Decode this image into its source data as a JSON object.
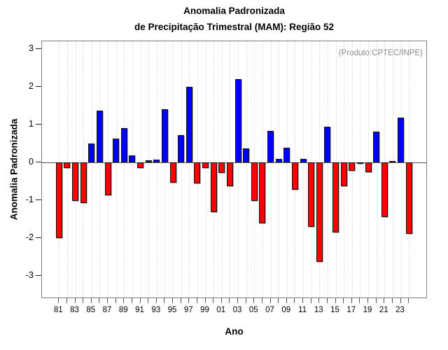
{
  "title": {
    "line1": "Anomalia Padronizada",
    "line2": "de Precipitação Trimestral (MAM): Região 52"
  },
  "annotation": "(Produto:CPTEC/INPE)",
  "chart_data": {
    "type": "bar",
    "title": "Anomalia Padronizada de Precipitação Trimestral (MAM): Região 52",
    "xlabel": "Ano",
    "ylabel": "Anomalia Padronizada",
    "ylim": [
      -3.2,
      3.2
    ],
    "yticks": [
      3,
      2,
      1,
      0,
      -1,
      -2,
      -3
    ],
    "ytick_labels": [
      "3",
      "2",
      "1",
      "0",
      "-1",
      "-2",
      "-3"
    ],
    "grid": "vertical-dotted",
    "legend": "none",
    "colors": {
      "positive": "#0000ff",
      "negative": "#ff0000"
    },
    "categories": [
      "81",
      "82",
      "83",
      "84",
      "85",
      "86",
      "87",
      "88",
      "89",
      "90",
      "91",
      "92",
      "93",
      "94",
      "95",
      "96",
      "97",
      "98",
      "99",
      "00",
      "01",
      "02",
      "03",
      "04",
      "05",
      "06",
      "07",
      "08",
      "09",
      "10",
      "11",
      "12",
      "13",
      "14",
      "15",
      "16",
      "17",
      "18",
      "19",
      "20",
      "21",
      "22",
      "23",
      "24"
    ],
    "labeled_ticks": [
      "81",
      "83",
      "85",
      "87",
      "89",
      "91",
      "93",
      "95",
      "97",
      "99",
      "01",
      "03",
      "05",
      "07",
      "09",
      "11",
      "13",
      "15",
      "17",
      "19",
      "21",
      "23"
    ],
    "values": [
      -2.0,
      -0.16,
      -1.03,
      -1.08,
      0.5,
      1.36,
      -0.87,
      0.62,
      0.9,
      0.18,
      -0.15,
      0.05,
      0.07,
      1.4,
      -0.54,
      0.72,
      2.0,
      -0.56,
      -0.16,
      -1.31,
      -0.28,
      -0.64,
      2.2,
      0.36,
      -1.03,
      -1.62,
      0.83,
      0.09,
      0.39,
      -0.73,
      0.09,
      -1.7,
      -2.63,
      0.94,
      -1.85,
      -0.64,
      -0.23,
      -0.05,
      -0.27,
      0.81,
      -1.44,
      0.04,
      1.18,
      -1.89
    ]
  }
}
